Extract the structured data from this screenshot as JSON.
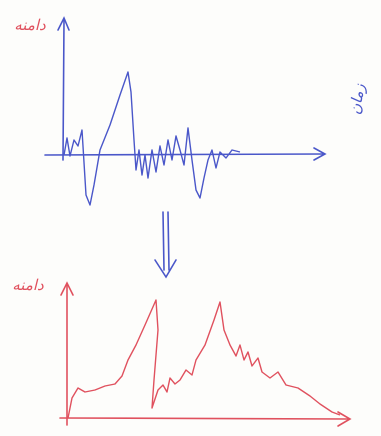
{
  "labels": {
    "top_amplitude": "دامنه",
    "time": "زمان",
    "bottom_amplitude": "دامنه"
  }
}
